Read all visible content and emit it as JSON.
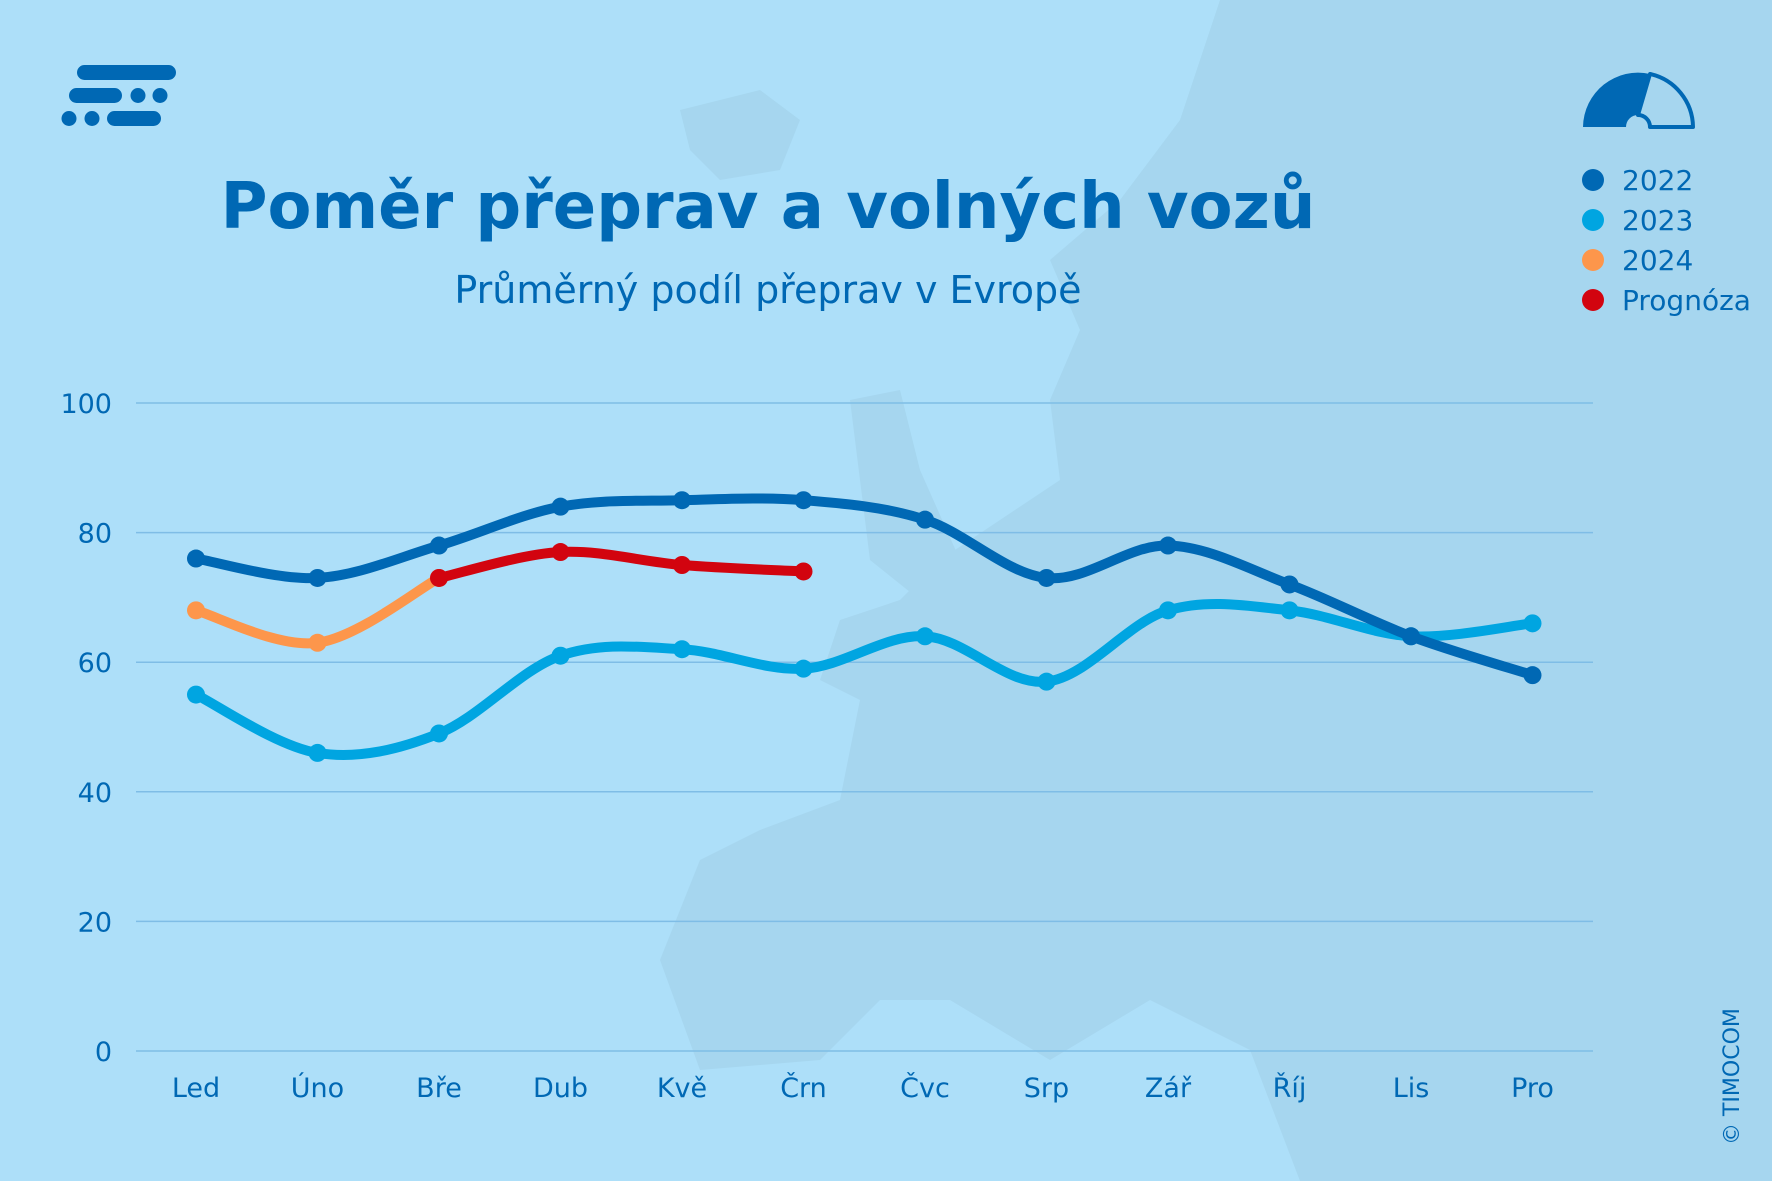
{
  "header": {
    "title": "Poměr přeprav a volných vozů",
    "subtitle": "Průměrný podíl přeprav v Evropě",
    "logo_icon": "timocom-logo-icon",
    "gauge_icon": "gauge-icon"
  },
  "copyright": "© TIMOCOM",
  "colors": {
    "background": "#addff9",
    "2022": "#0068b4",
    "2023": "#00a5e1",
    "2024": "#fd964b",
    "forecast": "#d2040f",
    "text": "#0068b4",
    "grid": "#7fbde6"
  },
  "chart_data": {
    "type": "line",
    "title": "Poměr přeprav a volných vozů",
    "subtitle": "Průměrný podíl přeprav v Evropě",
    "xlabel": "",
    "ylabel": "",
    "categories": [
      "Led",
      "Úno",
      "Bře",
      "Dub",
      "Kvě",
      "Črn",
      "Čvc",
      "Srp",
      "Zář",
      "Říj",
      "Lis",
      "Pro"
    ],
    "ylim": [
      0,
      100
    ],
    "yticks": [
      "0",
      "20",
      "40",
      "60",
      "80",
      "100"
    ],
    "grid": true,
    "legend_position": "top-right",
    "series": [
      {
        "name": "2022",
        "color": "#0068b4",
        "values": [
          76,
          73,
          78,
          84,
          85,
          85,
          82,
          73,
          78,
          72,
          64,
          58
        ]
      },
      {
        "name": "2023",
        "color": "#00a5e1",
        "values": [
          55,
          46,
          49,
          61,
          62,
          59,
          64,
          57,
          68,
          68,
          64,
          66
        ]
      },
      {
        "name": "2024",
        "color": "#fd964b",
        "values": [
          68,
          63,
          73,
          null,
          null,
          null,
          null,
          null,
          null,
          null,
          null,
          null
        ]
      },
      {
        "name": "Prognóza",
        "color": "#d2040f",
        "values": [
          null,
          null,
          73,
          77,
          75,
          74,
          null,
          null,
          null,
          null,
          null,
          null
        ]
      }
    ]
  }
}
